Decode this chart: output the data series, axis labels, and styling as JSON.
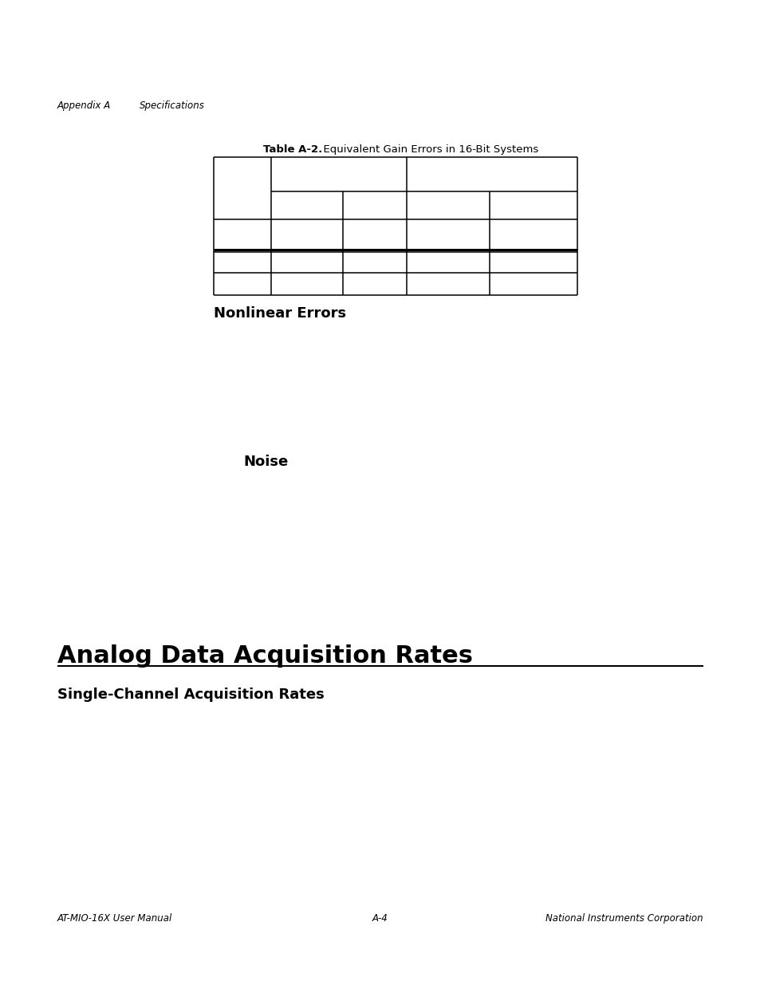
{
  "page_bg": "#ffffff",
  "header_left": "Appendix A",
  "header_right": "Specifications",
  "header_fontsize": 8.5,
  "table_title_bold": "Table A-2.",
  "table_title_regular": "  Equivalent Gain Errors in 16-Bit Systems",
  "table_title_fontsize": 9.5,
  "nonlinear_errors_text": "Nonlinear Errors",
  "nonlinear_errors_fontsize": 13,
  "noise_text": "Noise",
  "noise_fontsize": 13,
  "section_title": "Analog Data Acquisition Rates",
  "section_title_fontsize": 22,
  "subsection_title": "Single-Channel Acquisition Rates",
  "subsection_title_fontsize": 13,
  "footer_left": "AT-MIO-16X User Manual",
  "footer_center": "A-4",
  "footer_right": "National Instruments Corporation",
  "footer_fontsize": 8.5
}
